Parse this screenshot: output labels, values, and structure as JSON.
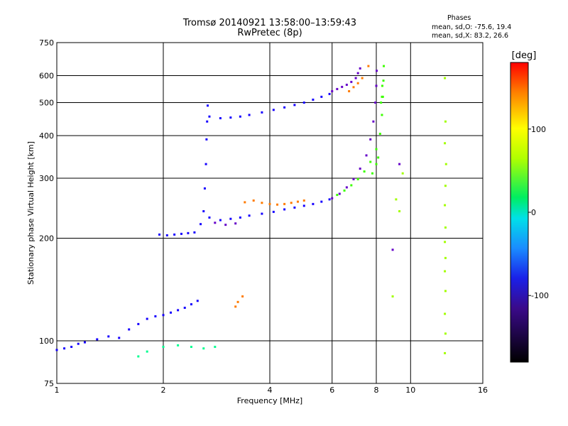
{
  "chart_data": {
    "type": "scatter",
    "title": "Tromsø 20140921 13:58:00–13:59:43",
    "subtitle": "RwPretec (8p)",
    "xlabel": "Frequency [MHz]",
    "ylabel": "Stationary phase Virtual Height [km]",
    "x_scale": "log",
    "y_scale": "log",
    "xlim": [
      1,
      16
    ],
    "ylim": [
      75,
      750
    ],
    "x_ticks": [
      1,
      2,
      4,
      6,
      8,
      10,
      16
    ],
    "y_ticks": [
      75,
      100,
      200,
      300,
      400,
      500,
      600,
      750
    ],
    "grid": true,
    "phase_info": {
      "heading": "Phases",
      "line_o": "mean, sd,O: -75.6, 19.4",
      "line_x": "mean, sd,X: 83.2, 26.6"
    },
    "colorbar": {
      "label": "[deg]",
      "ticks": [
        100,
        0,
        -100
      ],
      "range": [
        -180,
        180
      ]
    },
    "series": [
      {
        "phase": -75,
        "points": [
          [
            1.0,
            94
          ],
          [
            1.05,
            95
          ],
          [
            1.1,
            96
          ],
          [
            1.15,
            98
          ],
          [
            1.2,
            99
          ],
          [
            1.3,
            101
          ],
          [
            1.4,
            103
          ],
          [
            1.5,
            102
          ],
          [
            1.6,
            108
          ],
          [
            1.7,
            112
          ],
          [
            1.8,
            116
          ],
          [
            1.9,
            118
          ],
          [
            2.0,
            119
          ],
          [
            2.1,
            121
          ],
          [
            2.2,
            123
          ],
          [
            2.3,
            125
          ],
          [
            2.4,
            128
          ],
          [
            2.5,
            131
          ],
          [
            1.95,
            205
          ],
          [
            2.05,
            204
          ],
          [
            2.15,
            205
          ],
          [
            2.25,
            206
          ],
          [
            2.35,
            207
          ],
          [
            2.45,
            208
          ],
          [
            2.55,
            220
          ],
          [
            2.6,
            240
          ],
          [
            2.62,
            280
          ],
          [
            2.64,
            330
          ],
          [
            2.65,
            390
          ],
          [
            2.66,
            440
          ],
          [
            2.67,
            490
          ],
          [
            2.7,
            455
          ],
          [
            2.9,
            450
          ],
          [
            3.1,
            452
          ],
          [
            3.3,
            455
          ],
          [
            2.7,
            230
          ],
          [
            2.9,
            226
          ],
          [
            3.1,
            228
          ],
          [
            3.3,
            230
          ],
          [
            3.5,
            233
          ],
          [
            3.8,
            236
          ],
          [
            4.1,
            239
          ],
          [
            4.4,
            243
          ],
          [
            4.7,
            246
          ],
          [
            5.0,
            249
          ],
          [
            5.3,
            252
          ],
          [
            5.6,
            256
          ],
          [
            5.9,
            260
          ],
          [
            3.5,
            460
          ],
          [
            3.8,
            468
          ],
          [
            4.1,
            476
          ],
          [
            4.4,
            484
          ],
          [
            4.7,
            492
          ],
          [
            5.0,
            500
          ],
          [
            5.3,
            510
          ],
          [
            5.6,
            520
          ],
          [
            5.9,
            530
          ]
        ]
      },
      {
        "phase": -110,
        "points": [
          [
            2.8,
            222
          ],
          [
            3.0,
            219
          ],
          [
            3.2,
            221
          ],
          [
            6.0,
            262
          ],
          [
            6.3,
            270
          ],
          [
            6.6,
            282
          ],
          [
            6.9,
            298
          ],
          [
            7.2,
            320
          ],
          [
            7.5,
            350
          ],
          [
            7.7,
            390
          ],
          [
            7.85,
            440
          ],
          [
            7.95,
            500
          ],
          [
            8.0,
            560
          ],
          [
            8.02,
            620
          ],
          [
            6.0,
            540
          ],
          [
            6.2,
            548
          ],
          [
            6.4,
            556
          ],
          [
            6.6,
            564
          ],
          [
            6.8,
            575
          ],
          [
            7.0,
            590
          ],
          [
            7.1,
            610
          ],
          [
            7.2,
            630
          ],
          [
            9.3,
            330
          ],
          [
            8.9,
            185
          ]
        ]
      },
      {
        "phase": 70,
        "points": [
          [
            6.2,
            268
          ],
          [
            6.5,
            276
          ],
          [
            6.8,
            286
          ],
          [
            7.1,
            298
          ],
          [
            7.4,
            314
          ],
          [
            7.7,
            335
          ],
          [
            8.0,
            365
          ],
          [
            8.2,
            405
          ],
          [
            8.3,
            460
          ],
          [
            8.35,
            520
          ],
          [
            8.38,
            580
          ],
          [
            8.4,
            640
          ],
          [
            8.3,
            520
          ],
          [
            8.32,
            560
          ],
          [
            8.25,
            500
          ],
          [
            8.0,
            330
          ],
          [
            8.1,
            345
          ],
          [
            7.8,
            310
          ]
        ]
      },
      {
        "phase": 150,
        "points": [
          [
            3.8,
            254
          ],
          [
            4.0,
            252
          ],
          [
            4.2,
            251
          ],
          [
            4.4,
            252
          ],
          [
            4.6,
            254
          ],
          [
            4.8,
            256
          ],
          [
            5.0,
            258
          ],
          [
            3.2,
            126
          ],
          [
            3.25,
            130
          ],
          [
            3.35,
            135
          ],
          [
            3.4,
            255
          ],
          [
            3.6,
            258
          ],
          [
            6.7,
            540
          ],
          [
            6.9,
            555
          ],
          [
            7.1,
            570
          ],
          [
            7.3,
            590
          ],
          [
            7.6,
            640
          ]
        ]
      },
      {
        "phase": 20,
        "points": [
          [
            2.0,
            96
          ],
          [
            2.2,
            97
          ],
          [
            2.4,
            96
          ],
          [
            2.6,
            95
          ],
          [
            2.8,
            96
          ],
          [
            1.7,
            90
          ],
          [
            1.8,
            93
          ]
        ]
      },
      {
        "phase": 95,
        "points": [
          [
            12.5,
            590
          ],
          [
            12.55,
            440
          ],
          [
            12.5,
            380
          ],
          [
            12.6,
            330
          ],
          [
            12.55,
            285
          ],
          [
            12.5,
            250
          ],
          [
            12.55,
            215
          ],
          [
            12.5,
            195
          ],
          [
            12.55,
            175
          ],
          [
            12.5,
            160
          ],
          [
            12.55,
            140
          ],
          [
            12.5,
            120
          ],
          [
            12.55,
            105
          ],
          [
            12.5,
            92
          ],
          [
            9.5,
            310
          ],
          [
            9.3,
            240
          ],
          [
            9.1,
            260
          ],
          [
            8.9,
            135
          ]
        ]
      }
    ]
  }
}
